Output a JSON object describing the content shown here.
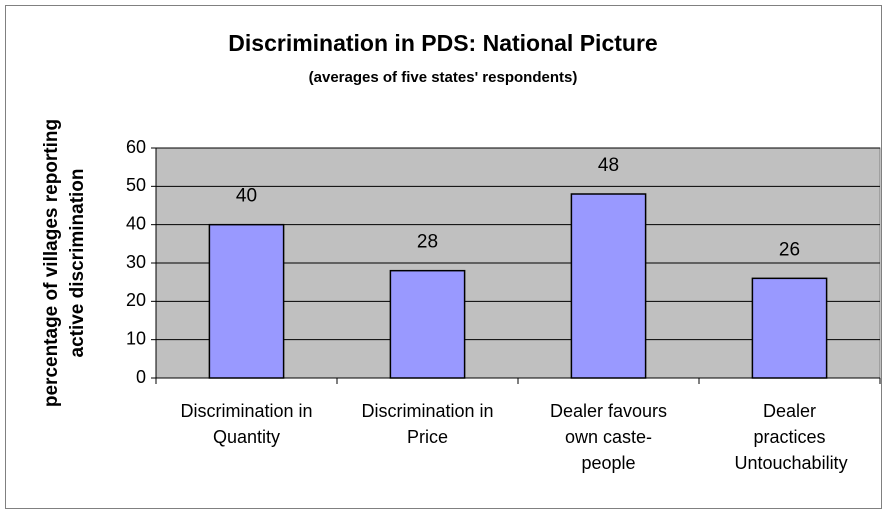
{
  "chart_data": {
    "type": "bar",
    "title": "Discrimination in PDS: National Picture",
    "subtitle": "(averages of five states' respondents)",
    "y_label": [
      "percentage of villages reporting",
      "active discrimination"
    ],
    "categories": [
      "Discrimination in Quantity",
      "Discrimination in Price",
      "Dealer favours own caste-people",
      "Dealer practices Untouchability"
    ],
    "values": [
      40,
      28,
      48,
      26
    ],
    "color": "#9999ff",
    "ylim": [
      0,
      60
    ],
    "yticks": [
      0,
      10,
      20,
      30,
      40,
      50,
      60
    ],
    "grid": true
  }
}
